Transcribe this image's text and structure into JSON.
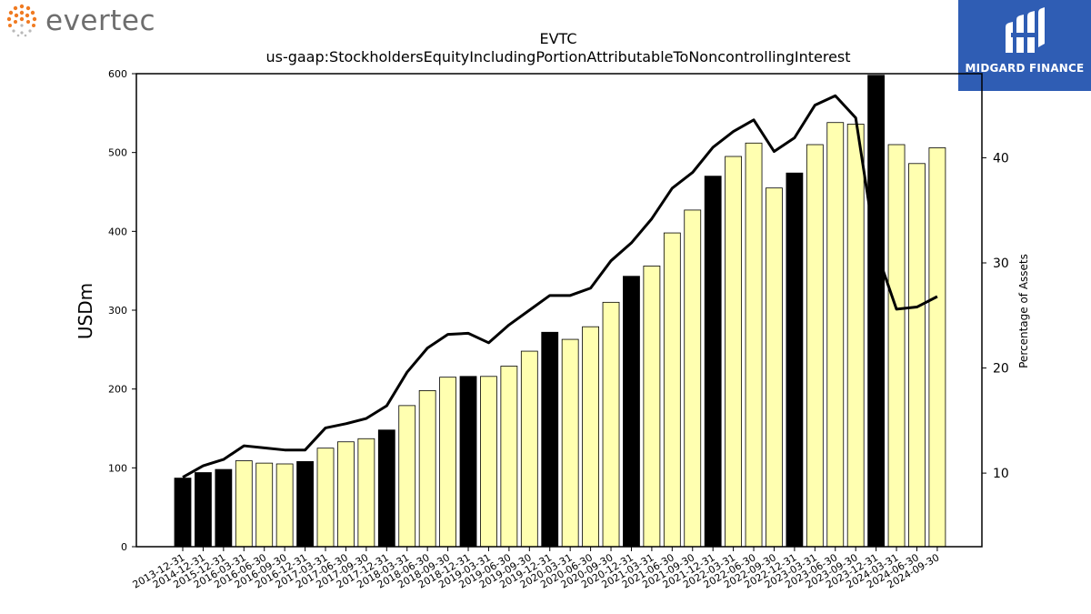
{
  "logos": {
    "left_text": "evertec",
    "right_text": "MIDGARD FINANCE"
  },
  "chart_data": {
    "type": "bar",
    "title": "EVTC",
    "subtitle": "us-gaap:StockholdersEquityIncludingPortionAttributableToNoncontrollingInterest",
    "ylabel": "USDm",
    "y2label": "Percentage of Assets",
    "ylim": [
      0,
      600
    ],
    "y2lim": [
      3,
      48
    ],
    "yticks": [
      0,
      100,
      200,
      300,
      400,
      500,
      600
    ],
    "y2ticks": [
      10,
      20,
      30,
      40
    ],
    "categories": [
      "2013-12-31",
      "2014-12-31",
      "2015-12-31",
      "2016-03-31",
      "2016-06-30",
      "2016-09-30",
      "2016-12-31",
      "2017-03-31",
      "2017-06-30",
      "2017-09-30",
      "2017-12-31",
      "2018-03-31",
      "2018-06-30",
      "2018-09-30",
      "2018-12-31",
      "2019-03-31",
      "2019-06-30",
      "2019-09-30",
      "2019-12-31",
      "2020-03-31",
      "2020-06-30",
      "2020-09-30",
      "2020-12-31",
      "2021-03-31",
      "2021-06-30",
      "2021-09-30",
      "2021-12-31",
      "2022-03-31",
      "2022-06-30",
      "2022-09-30",
      "2022-12-31",
      "2023-03-31",
      "2023-06-30",
      "2023-09-30",
      "2023-12-31",
      "2024-03-31",
      "2024-06-30",
      "2024-09-30"
    ],
    "series": [
      {
        "kind": "bar",
        "values": [
          87,
          94,
          98,
          109,
          106,
          105,
          108,
          125,
          133,
          137,
          148,
          179,
          198,
          215,
          216,
          216,
          229,
          248,
          272,
          263,
          279,
          310,
          343,
          356,
          398,
          427,
          470,
          495,
          512,
          455,
          474,
          510,
          538,
          536,
          598,
          510,
          486,
          506
        ],
        "annual": [
          true,
          true,
          true,
          false,
          false,
          false,
          true,
          false,
          false,
          false,
          true,
          false,
          false,
          false,
          true,
          false,
          false,
          false,
          true,
          false,
          false,
          false,
          true,
          false,
          false,
          false,
          true,
          false,
          false,
          false,
          true,
          false,
          false,
          false,
          true,
          false,
          false,
          false
        ],
        "annual_color": "#000000",
        "quarter_color": "#ffffb0"
      },
      {
        "kind": "line",
        "axis": "right",
        "values": [
          9.6,
          10.7,
          11.3,
          12.6,
          12.4,
          12.2,
          12.2,
          14.3,
          14.7,
          15.2,
          16.4,
          19.6,
          21.9,
          23.2,
          23.3,
          22.4,
          24.1,
          25.5,
          26.9,
          26.9,
          27.6,
          30.2,
          31.9,
          34.2,
          37.1,
          38.6,
          41.0,
          42.5,
          43.6,
          40.6,
          41.9,
          45.0,
          45.9,
          43.8,
          31.2,
          25.6,
          25.8,
          26.8
        ],
        "color": "#000000"
      }
    ]
  }
}
